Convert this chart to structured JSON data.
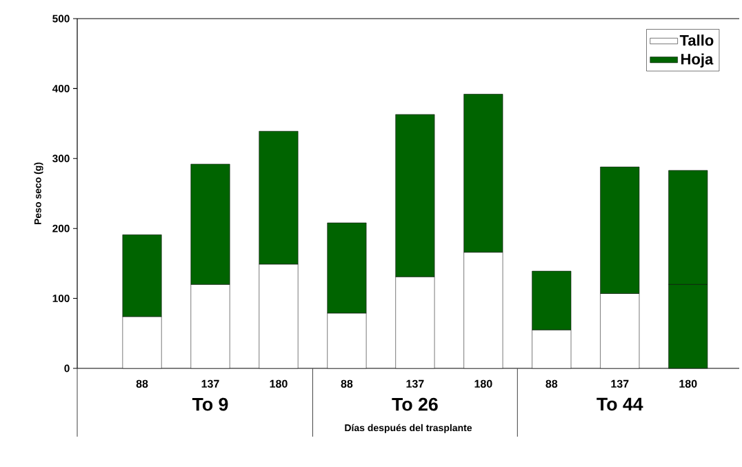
{
  "chart_data": {
    "type": "bar",
    "stacked": true,
    "xlabel": "Días después del trasplante",
    "ylabel": "Peso seco (g)",
    "categories": [
      "88",
      "137",
      "180",
      "88",
      "137",
      "180",
      "88",
      "137",
      "180"
    ],
    "annotations": [
      "To 9",
      "To 26",
      "To 44"
    ],
    "series": [
      {
        "name": "Tallo",
        "color": "#ffffff",
        "colors": [
          "#ffffff",
          "#ffffff",
          "#ffffff",
          "#ffffff",
          "#ffffff",
          "#ffffff",
          "#ffffff",
          "#ffffff",
          "#006400"
        ],
        "values": [
          74,
          120,
          149,
          79,
          131,
          166,
          55,
          107,
          120
        ]
      },
      {
        "name": "Hoja",
        "color": "#006400",
        "values": [
          117,
          172,
          190,
          129,
          232,
          226,
          84,
          181,
          163
        ]
      }
    ],
    "ylim": [
      0,
      500
    ],
    "yticks": [
      0,
      100,
      200,
      300,
      400,
      500
    ],
    "legend": "top right"
  }
}
